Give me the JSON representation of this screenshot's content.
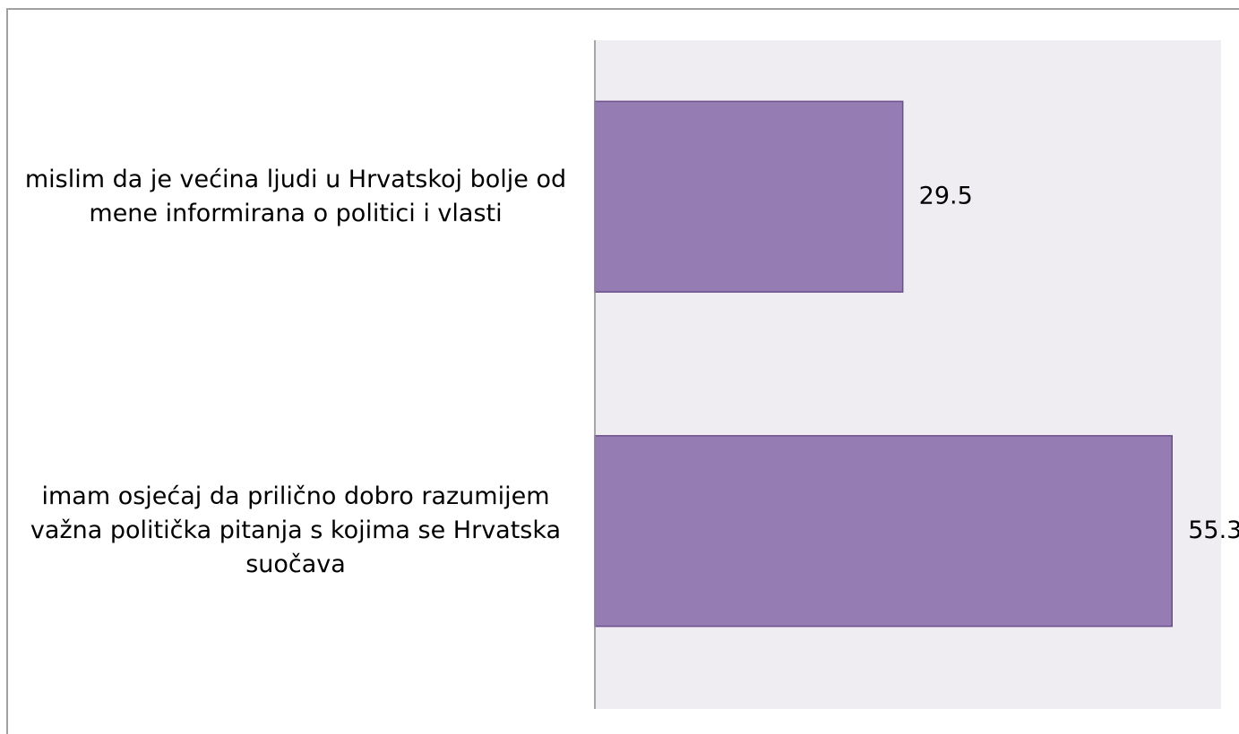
{
  "chart_data": {
    "type": "bar",
    "orientation": "horizontal",
    "categories": [
      "mislim da je većina ljudi u Hrvatskoj bolje od mene informirana o politici i vlasti",
      "imam osjećaj da prilično dobro razumijem važna politička pitanja s kojima se Hrvatska suočava"
    ],
    "values": [
      29.5,
      55.3
    ],
    "color": "#957cb2",
    "xlim": [
      0,
      60
    ]
  }
}
